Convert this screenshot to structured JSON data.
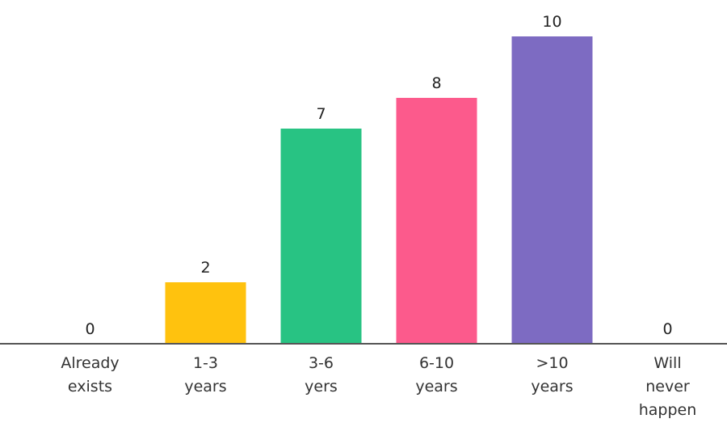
{
  "chart_data": {
    "type": "bar",
    "categories": [
      [
        "Already",
        "exists"
      ],
      [
        "1-3",
        "years"
      ],
      [
        "3-6",
        "yers"
      ],
      [
        "6-10",
        "years"
      ],
      [
        ">10",
        "years"
      ],
      [
        "Will",
        "never",
        "happen"
      ]
    ],
    "values": [
      0,
      2,
      7,
      8,
      10,
      0
    ],
    "colors": [
      "#f7f7f7",
      "#ffc20e",
      "#28c383",
      "#fc5a8c",
      "#7d6bc2",
      "#f7f7f7"
    ],
    "ylim": [
      0,
      10
    ],
    "grid": false,
    "legend": false,
    "title": "",
    "xlabel": "",
    "ylabel": ""
  }
}
